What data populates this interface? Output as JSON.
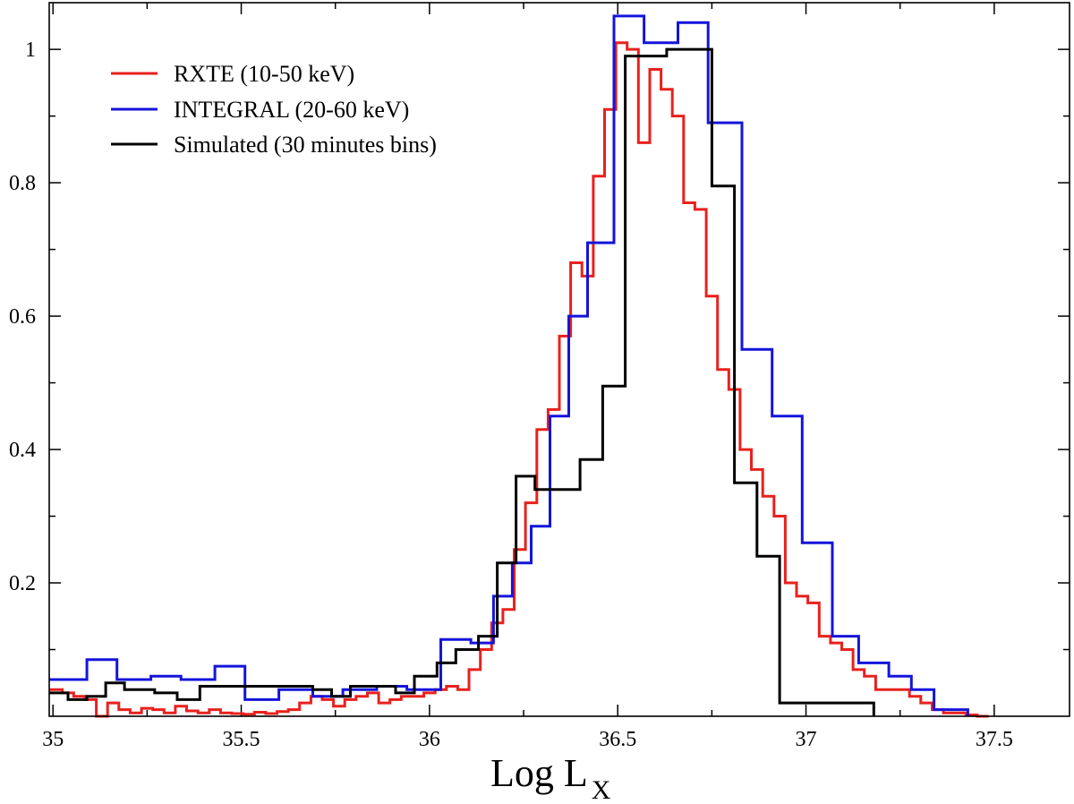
{
  "chart_data": {
    "type": "line",
    "title": "",
    "xlabel": "Log L",
    "xlabel_subscript": "X",
    "ylabel": "",
    "xlim": [
      34.99,
      37.7
    ],
    "ylim": [
      0.0,
      1.07
    ],
    "grid": false,
    "legend_position": "top-left",
    "x_ticks": [
      35,
      35.5,
      36,
      36.5,
      37,
      37.5
    ],
    "x_tick_labels": [
      "35",
      "35.5",
      "36",
      "36.5",
      "37",
      "37.5"
    ],
    "y_ticks": [
      0.2,
      0.4,
      0.6,
      0.8,
      1.0
    ],
    "y_tick_labels": [
      "0.2",
      "0.4",
      "0.6",
      "0.8",
      "1"
    ],
    "series": [
      {
        "name": "RXTE (10-50 keV)",
        "color": "#e8211d",
        "step": "post",
        "x": [
          34.99,
          35.025,
          35.055,
          35.085,
          35.115,
          35.145,
          35.175,
          35.205,
          35.235,
          35.265,
          35.295,
          35.325,
          35.355,
          35.385,
          35.415,
          35.445,
          35.475,
          35.505,
          35.535,
          35.565,
          35.595,
          35.625,
          35.655,
          35.685,
          35.715,
          35.745,
          35.775,
          35.805,
          35.835,
          35.865,
          35.895,
          35.925,
          35.955,
          35.985,
          36.015,
          36.045,
          36.075,
          36.105,
          36.135,
          36.165,
          36.195,
          36.225,
          36.255,
          36.285,
          36.315,
          36.345,
          36.375,
          36.405,
          36.435,
          36.465,
          36.495,
          36.525,
          36.555,
          36.585,
          36.615,
          36.645,
          36.675,
          36.705,
          36.735,
          36.765,
          36.795,
          36.825,
          36.855,
          36.885,
          36.915,
          36.945,
          36.975,
          37.005,
          37.035,
          37.065,
          37.095,
          37.125,
          37.155,
          37.185,
          37.215,
          37.245,
          37.275,
          37.305,
          37.335,
          37.365,
          37.395,
          37.425,
          37.455,
          37.485
        ],
        "y": [
          0.04,
          0.035,
          0.03,
          0.025,
          0.0,
          0.02,
          0.01,
          0.005,
          0.012,
          0.01,
          0.005,
          0.015,
          0.008,
          0.005,
          0.01,
          0.005,
          0.004,
          0.003,
          0.006,
          0.004,
          0.007,
          0.01,
          0.02,
          0.03,
          0.025,
          0.015,
          0.025,
          0.03,
          0.035,
          0.02,
          0.025,
          0.03,
          0.03,
          0.035,
          0.04,
          0.045,
          0.04,
          0.07,
          0.1,
          0.14,
          0.16,
          0.25,
          0.32,
          0.43,
          0.46,
          0.57,
          0.68,
          0.66,
          0.81,
          0.91,
          1.01,
          1.0,
          0.86,
          0.97,
          0.94,
          0.9,
          0.77,
          0.76,
          0.63,
          0.52,
          0.49,
          0.4,
          0.37,
          0.33,
          0.3,
          0.2,
          0.18,
          0.17,
          0.12,
          0.11,
          0.1,
          0.07,
          0.06,
          0.04,
          0.04,
          0.04,
          0.03,
          0.02,
          0.01,
          0.005,
          0.005,
          0.002,
          0.0,
          0.0
        ]
      },
      {
        "name": "INTEGRAL (20-60 keV)",
        "color": "#1414dc",
        "step": "post",
        "x": [
          34.99,
          35.09,
          35.17,
          35.26,
          35.34,
          35.43,
          35.51,
          35.6,
          35.69,
          35.77,
          35.86,
          35.94,
          36.03,
          36.11,
          36.17,
          36.22,
          36.27,
          36.32,
          36.37,
          36.42,
          36.49,
          36.57,
          36.66,
          36.74,
          36.83,
          36.91,
          36.99,
          37.07,
          37.14,
          37.22,
          37.28,
          37.34,
          37.43
        ],
        "y": [
          0.055,
          0.085,
          0.055,
          0.06,
          0.055,
          0.075,
          0.025,
          0.04,
          0.03,
          0.04,
          0.045,
          0.04,
          0.115,
          0.11,
          0.18,
          0.23,
          0.285,
          0.45,
          0.6,
          0.71,
          1.05,
          1.01,
          1.04,
          0.89,
          0.55,
          0.45,
          0.26,
          0.12,
          0.08,
          0.06,
          0.04,
          0.01,
          0.0
        ]
      },
      {
        "name": "Simulated (30 minutes bins)",
        "color": "#000000",
        "step": "post",
        "x": [
          34.99,
          35.04,
          35.09,
          35.14,
          35.19,
          35.27,
          35.33,
          35.39,
          35.46,
          35.51,
          35.57,
          35.63,
          35.69,
          35.74,
          35.79,
          35.85,
          35.91,
          35.96,
          36.02,
          36.07,
          36.13,
          36.18,
          36.23,
          36.28,
          36.34,
          36.4,
          36.46,
          36.52,
          36.57,
          36.63,
          36.69,
          36.75,
          36.81,
          36.87,
          36.93,
          36.99,
          37.05,
          37.11,
          37.18
        ],
        "y": [
          0.035,
          0.025,
          0.03,
          0.05,
          0.04,
          0.035,
          0.025,
          0.045,
          0.045,
          0.045,
          0.045,
          0.045,
          0.04,
          0.03,
          0.045,
          0.045,
          0.035,
          0.06,
          0.08,
          0.1,
          0.12,
          0.23,
          0.36,
          0.34,
          0.34,
          0.385,
          0.495,
          0.99,
          0.99,
          1.0,
          1.0,
          0.795,
          0.35,
          0.24,
          0.02,
          0.02,
          0.02,
          0.02,
          0.0
        ]
      }
    ]
  }
}
